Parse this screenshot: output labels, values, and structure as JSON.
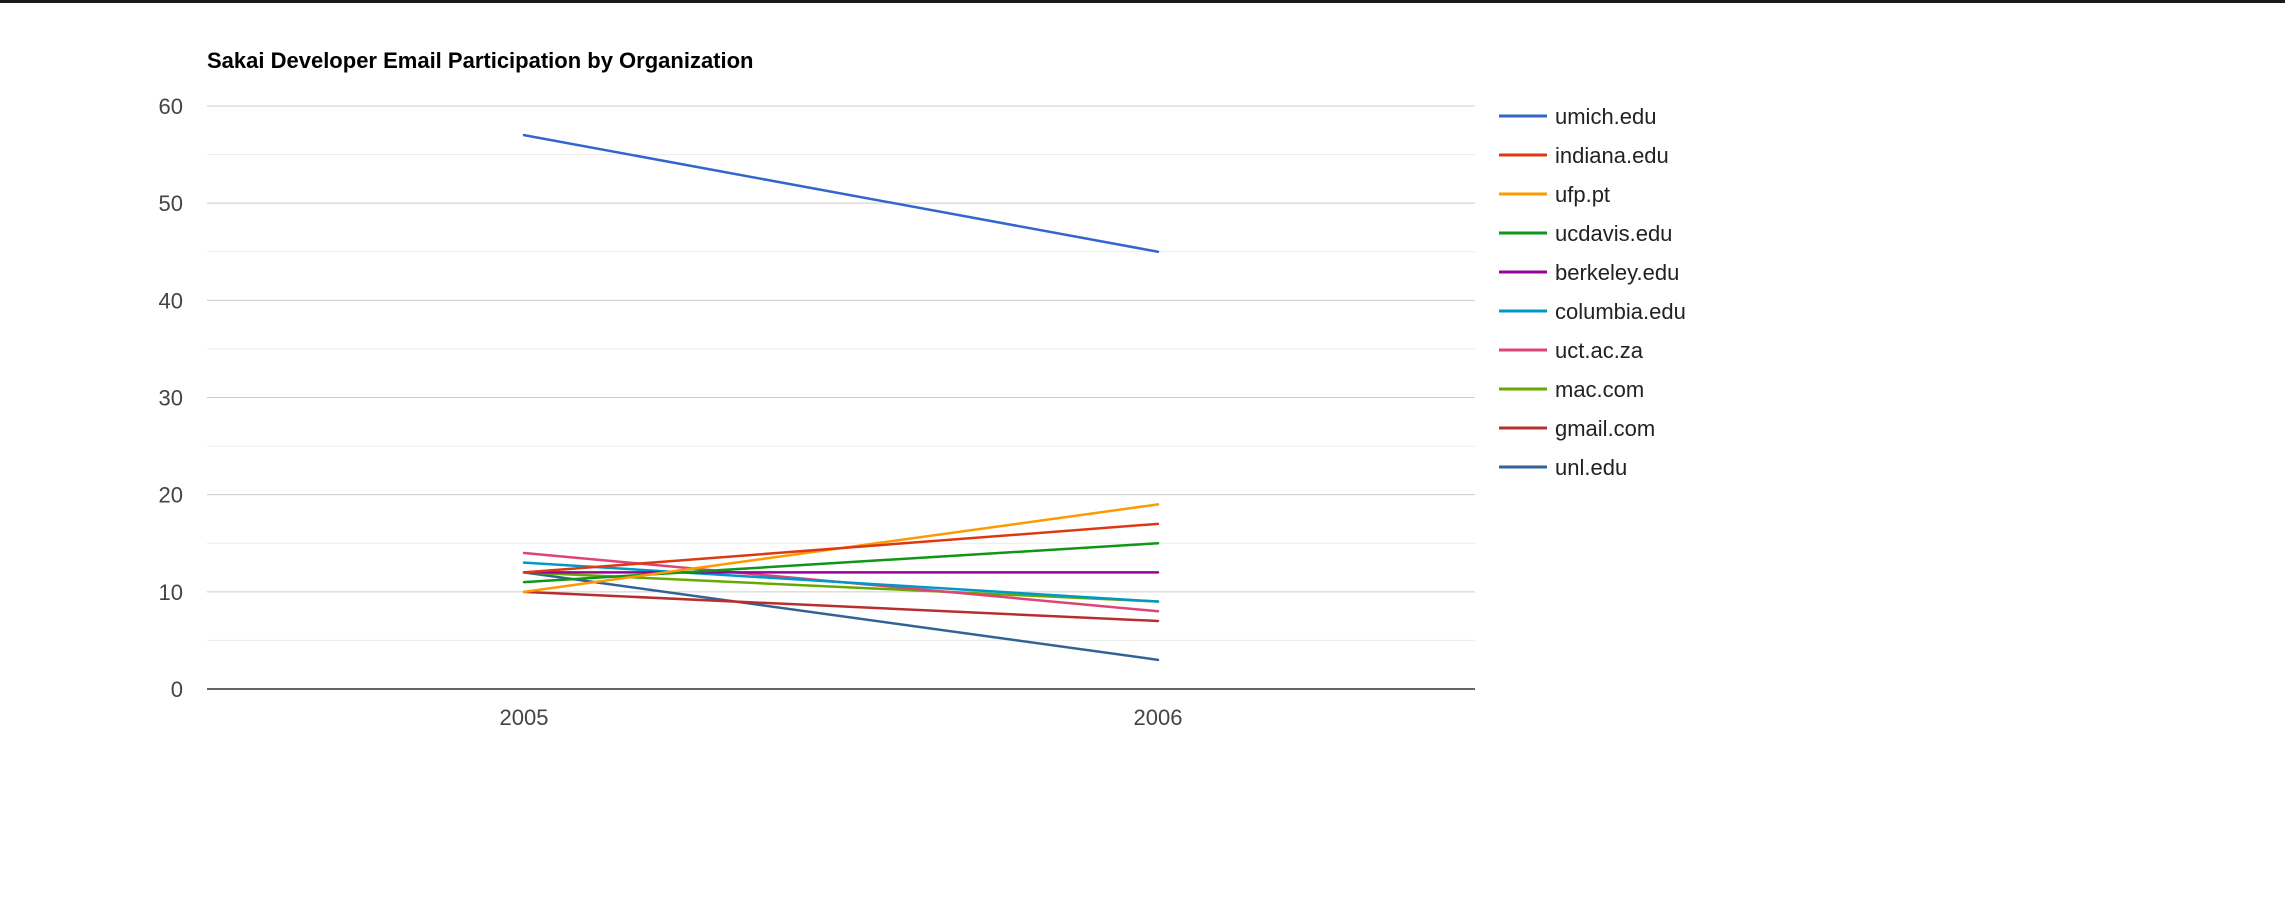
{
  "chart_data": {
    "type": "line",
    "title": "Sakai Developer Email Participation by Organization",
    "xlabel": "",
    "ylabel": "",
    "categories": [
      "2005",
      "2006"
    ],
    "ylim": [
      0,
      60
    ],
    "yticks": [
      0,
      10,
      20,
      30,
      40,
      50,
      60
    ],
    "grid": true,
    "legend_position": "right",
    "series": [
      {
        "name": "umich.edu",
        "color": "#3366cc",
        "values": [
          57,
          45
        ]
      },
      {
        "name": "indiana.edu",
        "color": "#dc3912",
        "values": [
          12,
          17
        ]
      },
      {
        "name": "ufp.pt",
        "color": "#ff9900",
        "values": [
          10,
          19
        ]
      },
      {
        "name": "ucdavis.edu",
        "color": "#109618",
        "values": [
          11,
          15
        ]
      },
      {
        "name": "berkeley.edu",
        "color": "#990099",
        "values": [
          12,
          12
        ]
      },
      {
        "name": "columbia.edu",
        "color": "#0099c6",
        "values": [
          13,
          9
        ]
      },
      {
        "name": "uct.ac.za",
        "color": "#dd4477",
        "values": [
          14,
          8
        ]
      },
      {
        "name": "mac.com",
        "color": "#66aa00",
        "values": [
          12,
          9
        ]
      },
      {
        "name": "gmail.com",
        "color": "#b82e2e",
        "values": [
          10,
          7
        ]
      },
      {
        "name": "unl.edu",
        "color": "#316395",
        "values": [
          12,
          3
        ]
      }
    ]
  }
}
